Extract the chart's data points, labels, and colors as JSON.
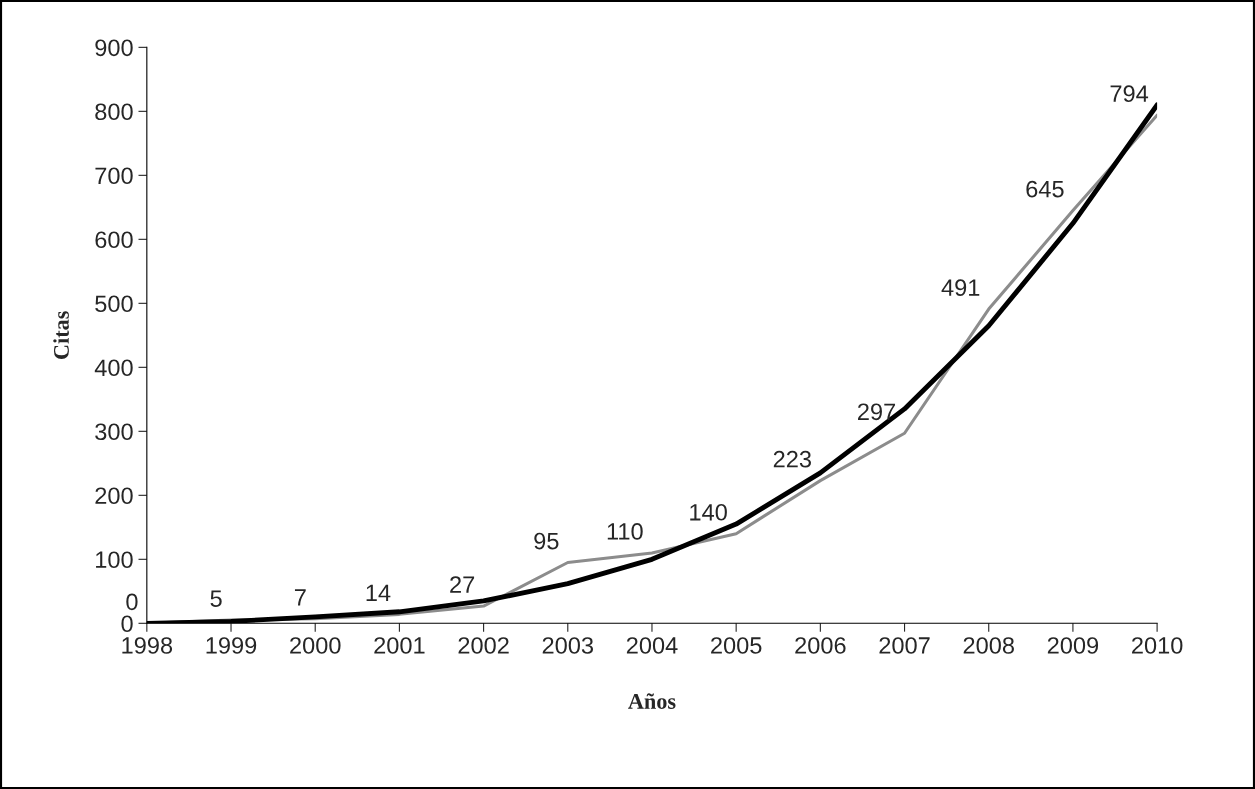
{
  "chart_data": {
    "type": "line",
    "xlabel": "Años",
    "ylabel": "Citas",
    "xlim": [
      1998,
      2010
    ],
    "ylim": [
      0,
      900
    ],
    "xticks": [
      1998,
      1999,
      2000,
      2001,
      2002,
      2003,
      2004,
      2005,
      2006,
      2007,
      2008,
      2009,
      2010
    ],
    "yticks": [
      0,
      100,
      200,
      300,
      400,
      500,
      600,
      700,
      800,
      900
    ],
    "grid": false,
    "legend": false,
    "marker": "none",
    "x": [
      1998,
      1999,
      2000,
      2001,
      2002,
      2003,
      2004,
      2005,
      2006,
      2007,
      2008,
      2009,
      2010
    ],
    "series": [
      {
        "color": "#8c8c8c",
        "values": [
          0,
          5,
          7,
          14,
          27,
          95,
          110,
          140,
          223,
          297,
          491,
          645,
          794
        ],
        "value_labels": [
          "0",
          "5",
          "7",
          "14",
          "27",
          "95",
          "110",
          "140",
          "223",
          "297",
          "491",
          "645",
          "794"
        ]
      },
      {
        "type": "line",
        "color": "#000000",
        "x": [
          1998,
          1999,
          2000,
          2001,
          2002,
          2003,
          2004,
          2005,
          2006,
          2007,
          2008,
          2009,
          2010
        ],
        "values": [
          0,
          3,
          10,
          18,
          35,
          62,
          100,
          155,
          235,
          335,
          465,
          625,
          810
        ]
      }
    ]
  }
}
